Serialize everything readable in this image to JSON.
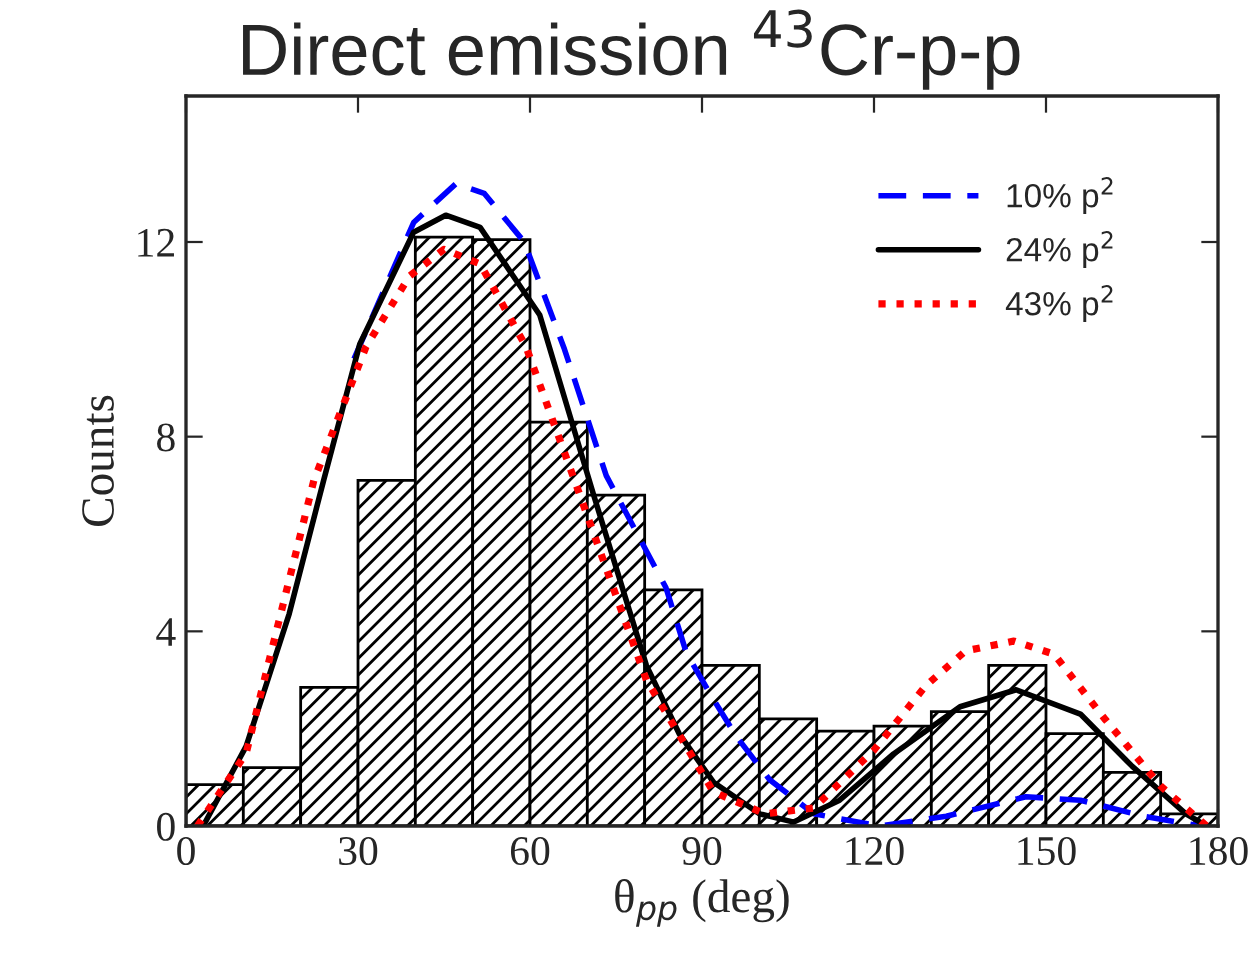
{
  "chart_data": {
    "type": "histogram",
    "title": "Direct emission $^{43}$Cr-p-p",
    "xlabel": "θ$_{pp}$ (deg)",
    "ylabel": "Counts",
    "bins": [
      0,
      10,
      20,
      30,
      40,
      50,
      60,
      70,
      80,
      90,
      100,
      110,
      120,
      130,
      140,
      150,
      160,
      170,
      180
    ],
    "values": [
      0.85,
      1.2,
      2.85,
      7.1,
      12.1,
      12.05,
      8.3,
      6.8,
      4.85,
      3.3,
      2.2,
      1.95,
      2.05,
      2.35,
      3.3,
      1.9,
      1.1,
      0.25
    ],
    "color": "#000000",
    "series": [
      {
        "name": "10% p$^{2}$",
        "type": "line",
        "color": "#0000ff",
        "line_style": "dashed",
        "x": [
          29.3,
          39.7,
          47.1,
          52,
          59,
          66,
          73.3,
          83.7,
          87.3,
          92,
          96,
          101.8,
          109.5,
          121,
          132.6,
          146.5,
          156,
          167,
          177
        ],
        "values": [
          9.6,
          12.4,
          13.2,
          13.0,
          12.0,
          9.8,
          7.2,
          4.9,
          3.55,
          2.6,
          1.84,
          0.95,
          0.25,
          0,
          0.2,
          0.6,
          0.53,
          0.2,
          0
        ]
      },
      {
        "name": "24% p$^{2}$",
        "type": "line",
        "color": "#000000",
        "line_style": "solid",
        "x": [
          3,
          10.5,
          18,
          24,
          30.3,
          39.7,
          45.3,
          51.3,
          61.7,
          71.1,
          80.3,
          86,
          92,
          100,
          106,
          114,
          123.4,
          135,
          144.8,
          156,
          165,
          174.4,
          178
        ],
        "values": [
          0,
          1.64,
          4.36,
          7.1,
          9.9,
          12.2,
          12.55,
          12.3,
          10.5,
          6.8,
          3.3,
          1.9,
          0.9,
          0.25,
          0.08,
          0.53,
          1.48,
          2.45,
          2.8,
          2.3,
          1.23,
          0.25,
          0
        ]
      },
      {
        "name": "43% p$^{2}$",
        "type": "line",
        "color": "#ff0000",
        "line_style": "dotted",
        "x": [
          2,
          10.5,
          22.3,
          31.4,
          39,
          45,
          51.3,
          59.3,
          68.7,
          80.3,
          92,
          101,
          109.5,
          120,
          129,
          136,
          144.4,
          151.4,
          160.4,
          170,
          178
        ],
        "values": [
          0,
          1.5,
          7.1,
          9.85,
          11.3,
          11.85,
          11.55,
          9.85,
          6.8,
          3.0,
          0.7,
          0.25,
          0.37,
          1.56,
          2.88,
          3.6,
          3.8,
          3.53,
          2.18,
          0.82,
          0
        ]
      }
    ],
    "xlim": [
      0,
      180
    ],
    "xticks": [
      0,
      30,
      60,
      90,
      120,
      150,
      180
    ],
    "ylim": [
      0,
      15
    ],
    "yticks": [
      0,
      4,
      8,
      12
    ],
    "legend": "top right",
    "grid": false
  }
}
